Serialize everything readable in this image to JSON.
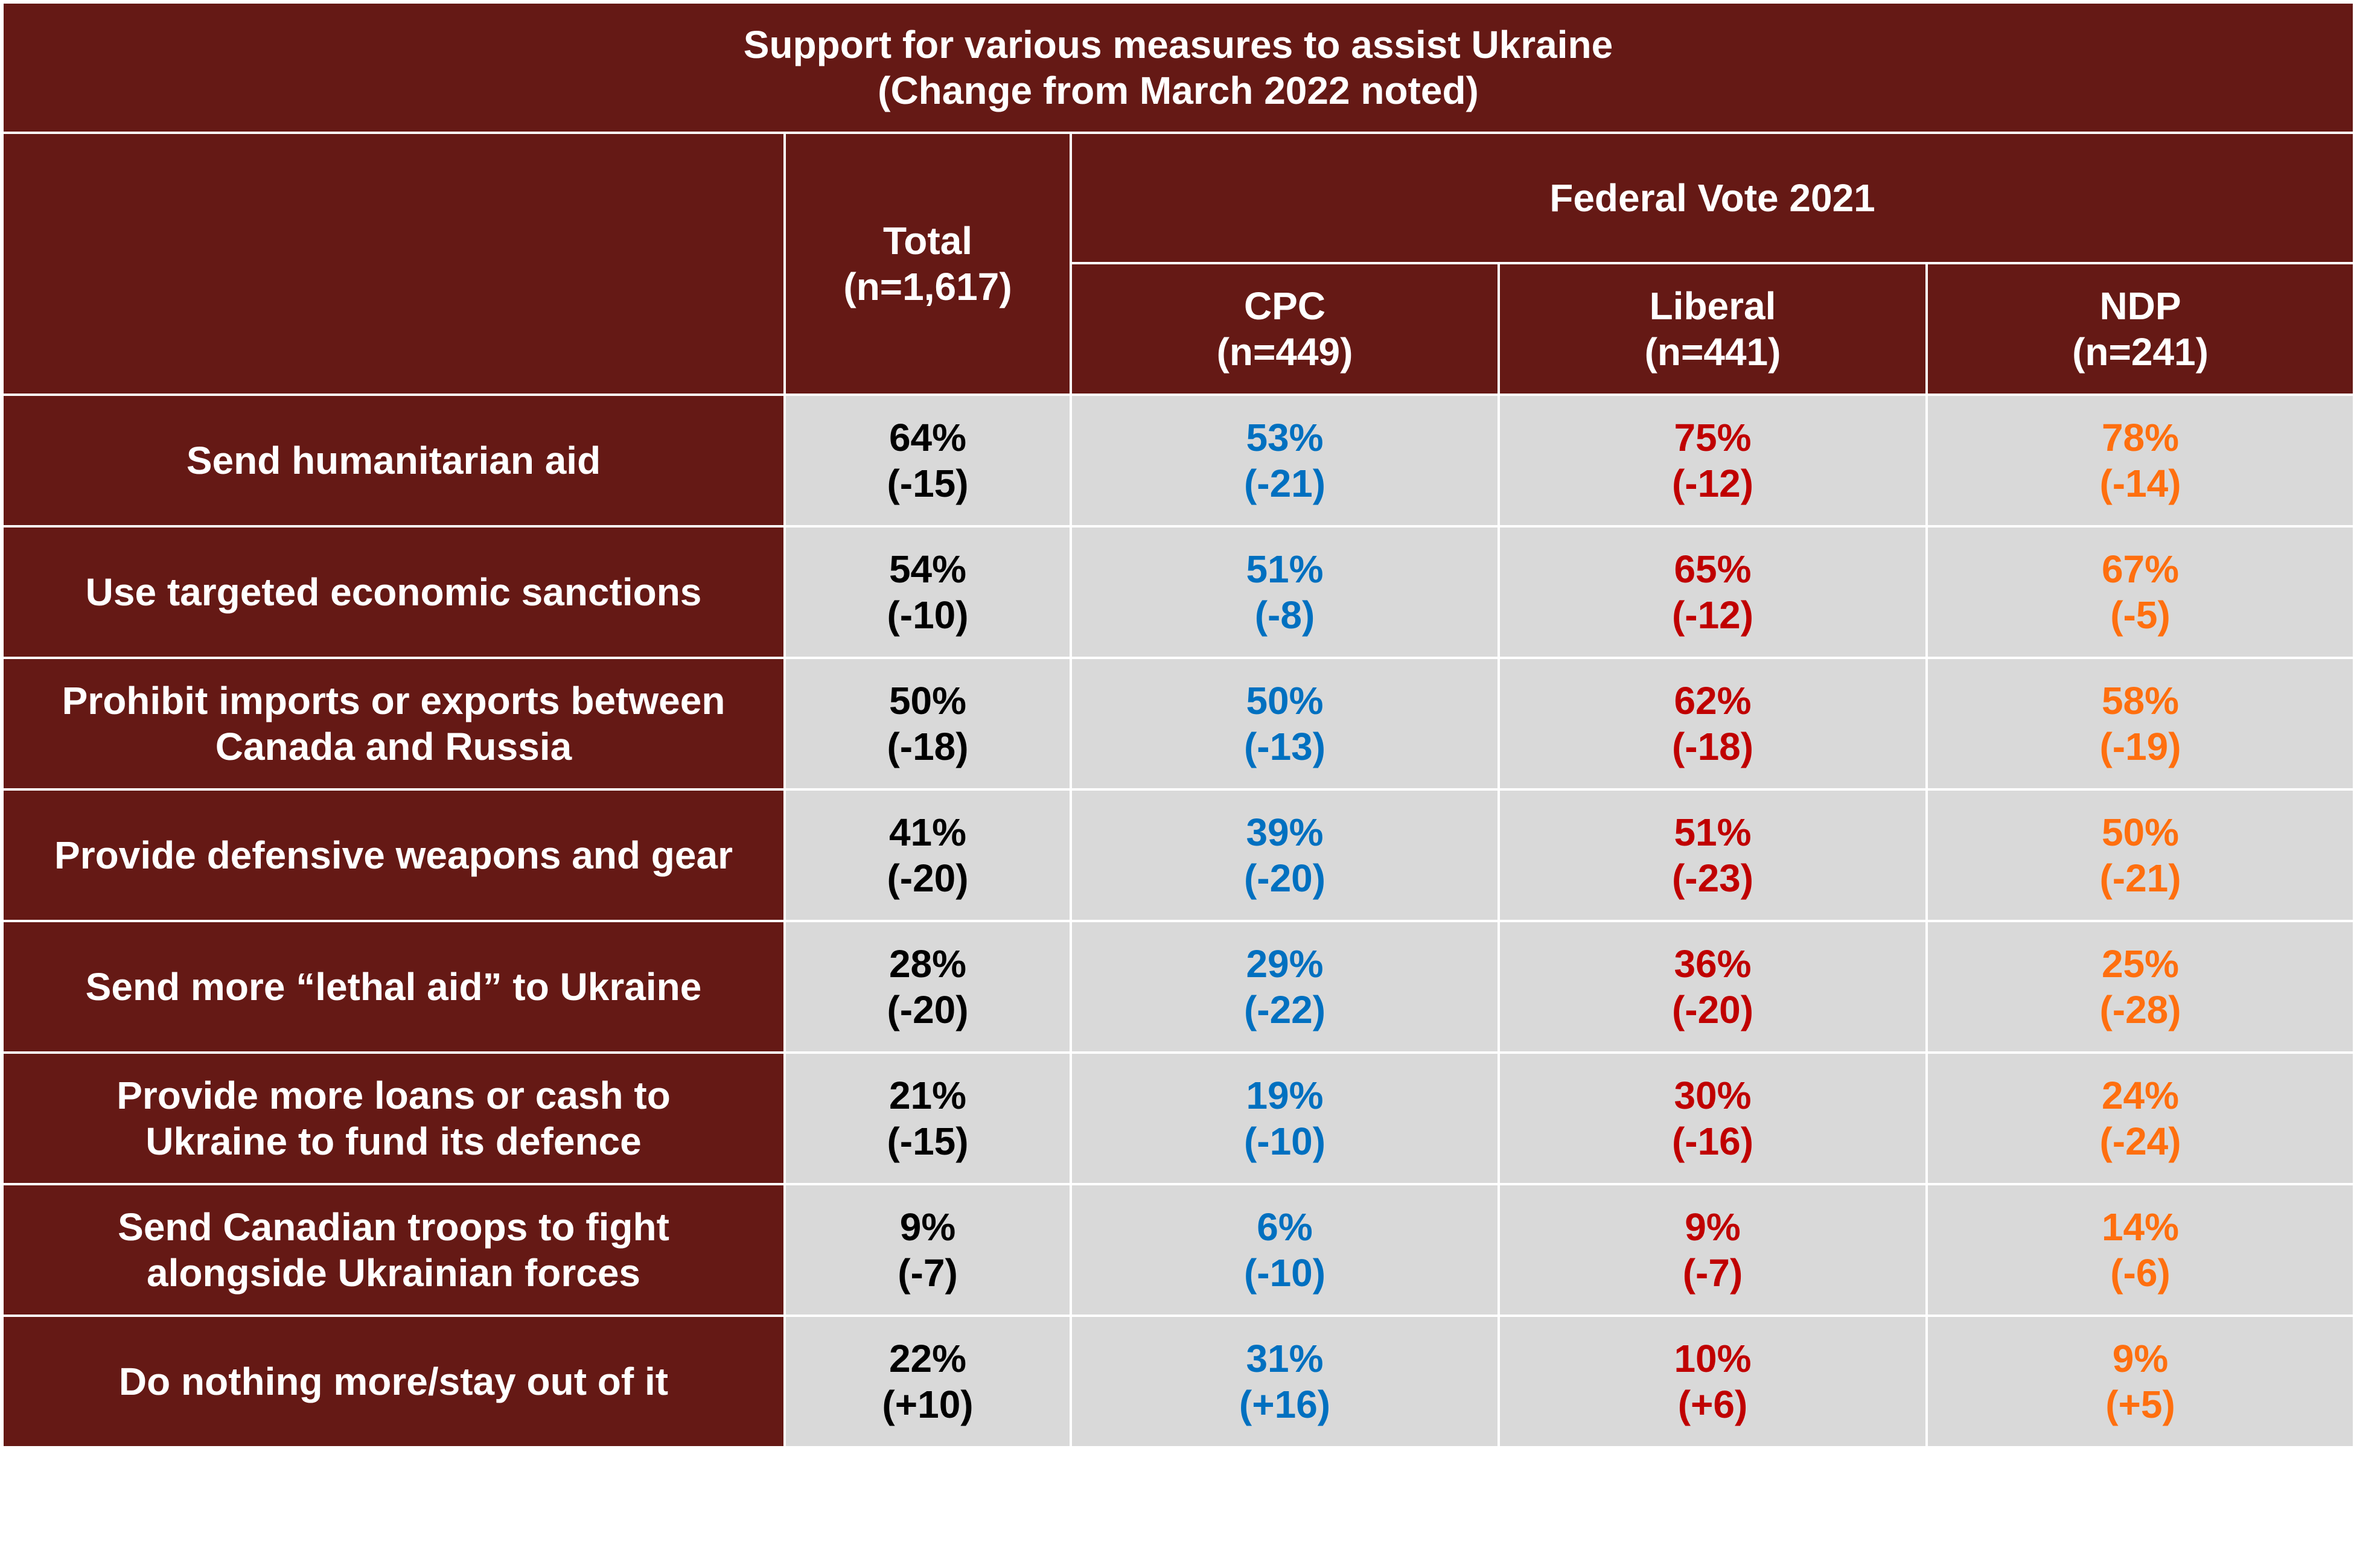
{
  "chart_data": {
    "type": "table",
    "title": "Support for various measures to assist Ukraine",
    "subtitle": "(Change from March 2022 noted)",
    "group_header": "Federal Vote 2021",
    "columns": [
      {
        "name": "Total",
        "n": "(n=1,617)",
        "color": "#000000"
      },
      {
        "name": "CPC",
        "n": "(n=449)",
        "color": "#0070c0"
      },
      {
        "name": "Liberal",
        "n": "(n=441)",
        "color": "#c00000"
      },
      {
        "name": "NDP",
        "n": "(n=241)",
        "color": "#ff6f0f"
      }
    ],
    "rows": [
      {
        "label": [
          "Send humanitarian aid"
        ],
        "cells": [
          {
            "pct": "64%",
            "change": "(-15)"
          },
          {
            "pct": "53%",
            "change": "(-21)"
          },
          {
            "pct": "75%",
            "change": "(-12)"
          },
          {
            "pct": "78%",
            "change": "(-14)"
          }
        ]
      },
      {
        "label": [
          "Use targeted economic sanctions"
        ],
        "cells": [
          {
            "pct": "54%",
            "change": "(-10)"
          },
          {
            "pct": "51%",
            "change": "(-8)"
          },
          {
            "pct": "65%",
            "change": "(-12)"
          },
          {
            "pct": "67%",
            "change": "(-5)"
          }
        ]
      },
      {
        "label": [
          "Prohibit imports or exports between",
          "Canada and Russia"
        ],
        "cells": [
          {
            "pct": "50%",
            "change": "(-18)"
          },
          {
            "pct": "50%",
            "change": "(-13)"
          },
          {
            "pct": "62%",
            "change": "(-18)"
          },
          {
            "pct": "58%",
            "change": "(-19)"
          }
        ]
      },
      {
        "label": [
          "Provide defensive weapons and gear"
        ],
        "cells": [
          {
            "pct": "41%",
            "change": "(-20)"
          },
          {
            "pct": "39%",
            "change": "(-20)"
          },
          {
            "pct": "51%",
            "change": "(-23)"
          },
          {
            "pct": "50%",
            "change": "(-21)"
          }
        ]
      },
      {
        "label": [
          "Send more “lethal aid” to Ukraine"
        ],
        "cells": [
          {
            "pct": "28%",
            "change": "(-20)"
          },
          {
            "pct": "29%",
            "change": "(-22)"
          },
          {
            "pct": "36%",
            "change": "(-20)"
          },
          {
            "pct": "25%",
            "change": "(-28)"
          }
        ]
      },
      {
        "label": [
          "Provide more loans or cash to",
          "Ukraine to fund its defence"
        ],
        "cells": [
          {
            "pct": "21%",
            "change": "(-15)"
          },
          {
            "pct": "19%",
            "change": "(-10)"
          },
          {
            "pct": "30%",
            "change": "(-16)"
          },
          {
            "pct": "24%",
            "change": "(-24)"
          }
        ]
      },
      {
        "label": [
          "Send Canadian troops to fight",
          "alongside Ukrainian forces"
        ],
        "cells": [
          {
            "pct": "9%",
            "change": "(-7)"
          },
          {
            "pct": "6%",
            "change": "(-10)"
          },
          {
            "pct": "9%",
            "change": "(-7)"
          },
          {
            "pct": "14%",
            "change": "(-6)"
          }
        ]
      },
      {
        "label": [
          "Do nothing more/stay out of it"
        ],
        "cells": [
          {
            "pct": "22%",
            "change": "(+10)"
          },
          {
            "pct": "31%",
            "change": "(+16)"
          },
          {
            "pct": "10%",
            "change": "(+6)"
          },
          {
            "pct": "9%",
            "change": "(+5)"
          }
        ]
      }
    ],
    "colors": {
      "header_bg": "#651915",
      "cell_bg": "#d9d9d9",
      "header_text": "#ffffff"
    }
  }
}
